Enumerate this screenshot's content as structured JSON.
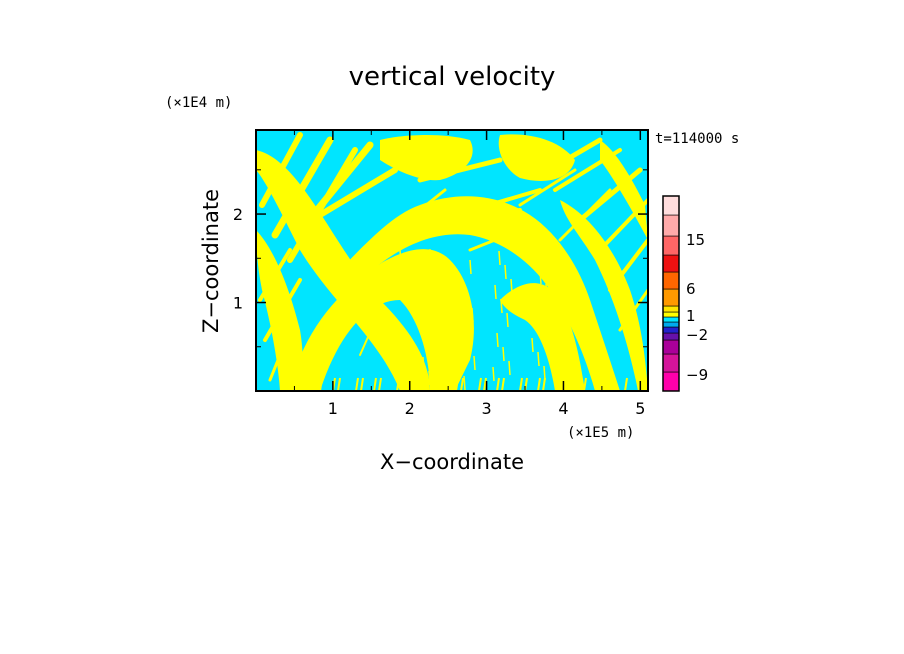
{
  "chart_data": {
    "type": "heatmap",
    "title": "vertical velocity",
    "xlabel": "X−coordinate",
    "ylabel": "Z−coordinate",
    "x_scale_note": "(×1E5 m)",
    "y_scale_note": "(×1E4 m)",
    "time_label": "t=114000 s",
    "xlim": [
      0,
      5.1
    ],
    "ylim": [
      0,
      2.95
    ],
    "x_ticks": [
      1,
      2,
      3,
      4,
      5
    ],
    "y_ticks": [
      1,
      2
    ],
    "x_tick_labels": [
      "1",
      "2",
      "3",
      "4",
      "5"
    ],
    "y_tick_labels": [
      "1",
      "2"
    ],
    "colorbar": {
      "tick_labels": [
        {
          "value": 15,
          "label": "15"
        },
        {
          "value": 6,
          "label": "6"
        },
        {
          "value": 1,
          "label": "1"
        },
        {
          "value": -2,
          "label": "−2"
        },
        {
          "value": -9,
          "label": "−9"
        }
      ],
      "colors_bottom_to_top": [
        "#ff00aa",
        "#d4149a",
        "#aa0099",
        "#6611aa",
        "#2222cc",
        "#00aaee",
        "#00e5ff",
        "#ffff00",
        "#ffe600",
        "#ff9900",
        "#ff6600",
        "#ee1111",
        "#ff6666",
        "#ffaaaa",
        "#ffdddd"
      ]
    },
    "field_colors": {
      "positive": "#ffff00",
      "negative": "#00e5ff"
    }
  }
}
